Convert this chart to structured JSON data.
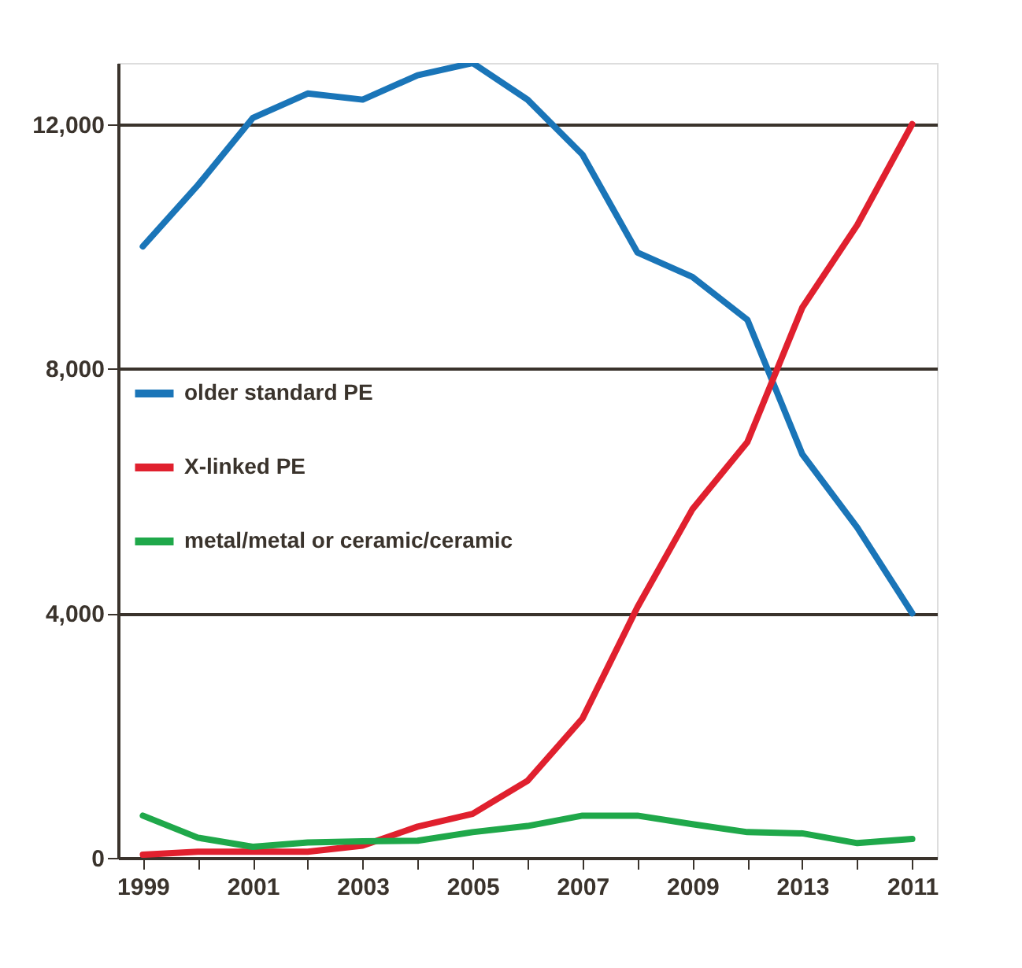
{
  "chart_data": {
    "type": "line",
    "categories": [
      "1999",
      null,
      "2001",
      null,
      "2003",
      null,
      "2005",
      null,
      "2007",
      null,
      "2009",
      null,
      "2013",
      null,
      "2011"
    ],
    "series": [
      {
        "name": "older standard PE",
        "color": "#1a75b8",
        "values": [
          10000,
          11000,
          12100,
          12500,
          12400,
          12800,
          13000,
          12400,
          11500,
          9900,
          9500,
          8800,
          6600,
          5400,
          4000
        ]
      },
      {
        "name": "X-linked PE",
        "color": "#e0202e",
        "values": [
          50,
          100,
          100,
          100,
          200,
          510,
          720,
          1260,
          2280,
          4100,
          5700,
          6800,
          9000,
          10350,
          12000
        ]
      },
      {
        "name": "metal/metal or ceramic/ceramic",
        "color": "#1fa84a",
        "values": [
          690,
          330,
          180,
          250,
          270,
          280,
          420,
          520,
          690,
          690,
          550,
          420,
          400,
          240,
          310
        ]
      }
    ],
    "ylim": [
      0,
      13000
    ],
    "yticks": [
      {
        "value": 0,
        "label": "0"
      },
      {
        "value": 4000,
        "label": "4,000"
      },
      {
        "value": 8000,
        "label": "8,000"
      },
      {
        "value": 12000,
        "label": "12,000"
      }
    ],
    "grid": "y",
    "legend": "left",
    "marker": "none",
    "line_style": "solid"
  }
}
